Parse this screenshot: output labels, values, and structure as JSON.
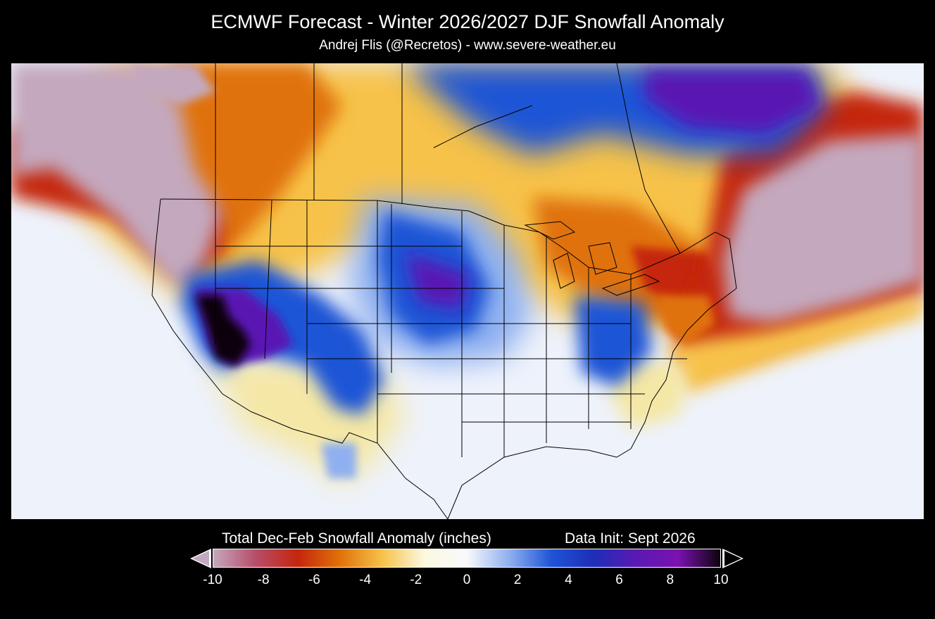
{
  "header": {
    "title": "ECMWF Forecast - Winter 2026/2027 DJF Snowfall Anomaly",
    "subtitle": "Andrej Flis (@Recretos) - www.severe-weather.eu"
  },
  "legend": {
    "caption": "Total Dec-Feb Snowfall Anomaly (inches)",
    "data_init": "Data Init: Sept 2026",
    "range": [
      -10,
      10
    ],
    "ticks": [
      "-10",
      "-8",
      "-6",
      "-4",
      "-2",
      "0",
      "2",
      "4",
      "6",
      "8",
      "10"
    ],
    "colors": [
      "#c4a8bd",
      "#b74d6a",
      "#c5260d",
      "#e0720a",
      "#f7c24a",
      "#fbf9e0",
      "#f8f9fd",
      "#8fb0f0",
      "#1f54d6",
      "#1e2eb8",
      "#5a19b3",
      "#7a12b0",
      "#0d030d"
    ],
    "extends_below_min": true,
    "extends_above_max": true
  },
  "map": {
    "region": "North America (Contiguous United States, southern Canada, northern Mexico)",
    "field": "DJF snowfall anomaly",
    "colors": {
      "ocean_background": "#eef2fb",
      "strong_negative": "#c4a8bd",
      "negative": "#c5260d",
      "slight_negative": "#f7c24a",
      "positive": "#1f54d6",
      "strong_positive": "#5a19b3",
      "extreme_positive": "#0d030d",
      "borders": "#000000"
    }
  }
}
